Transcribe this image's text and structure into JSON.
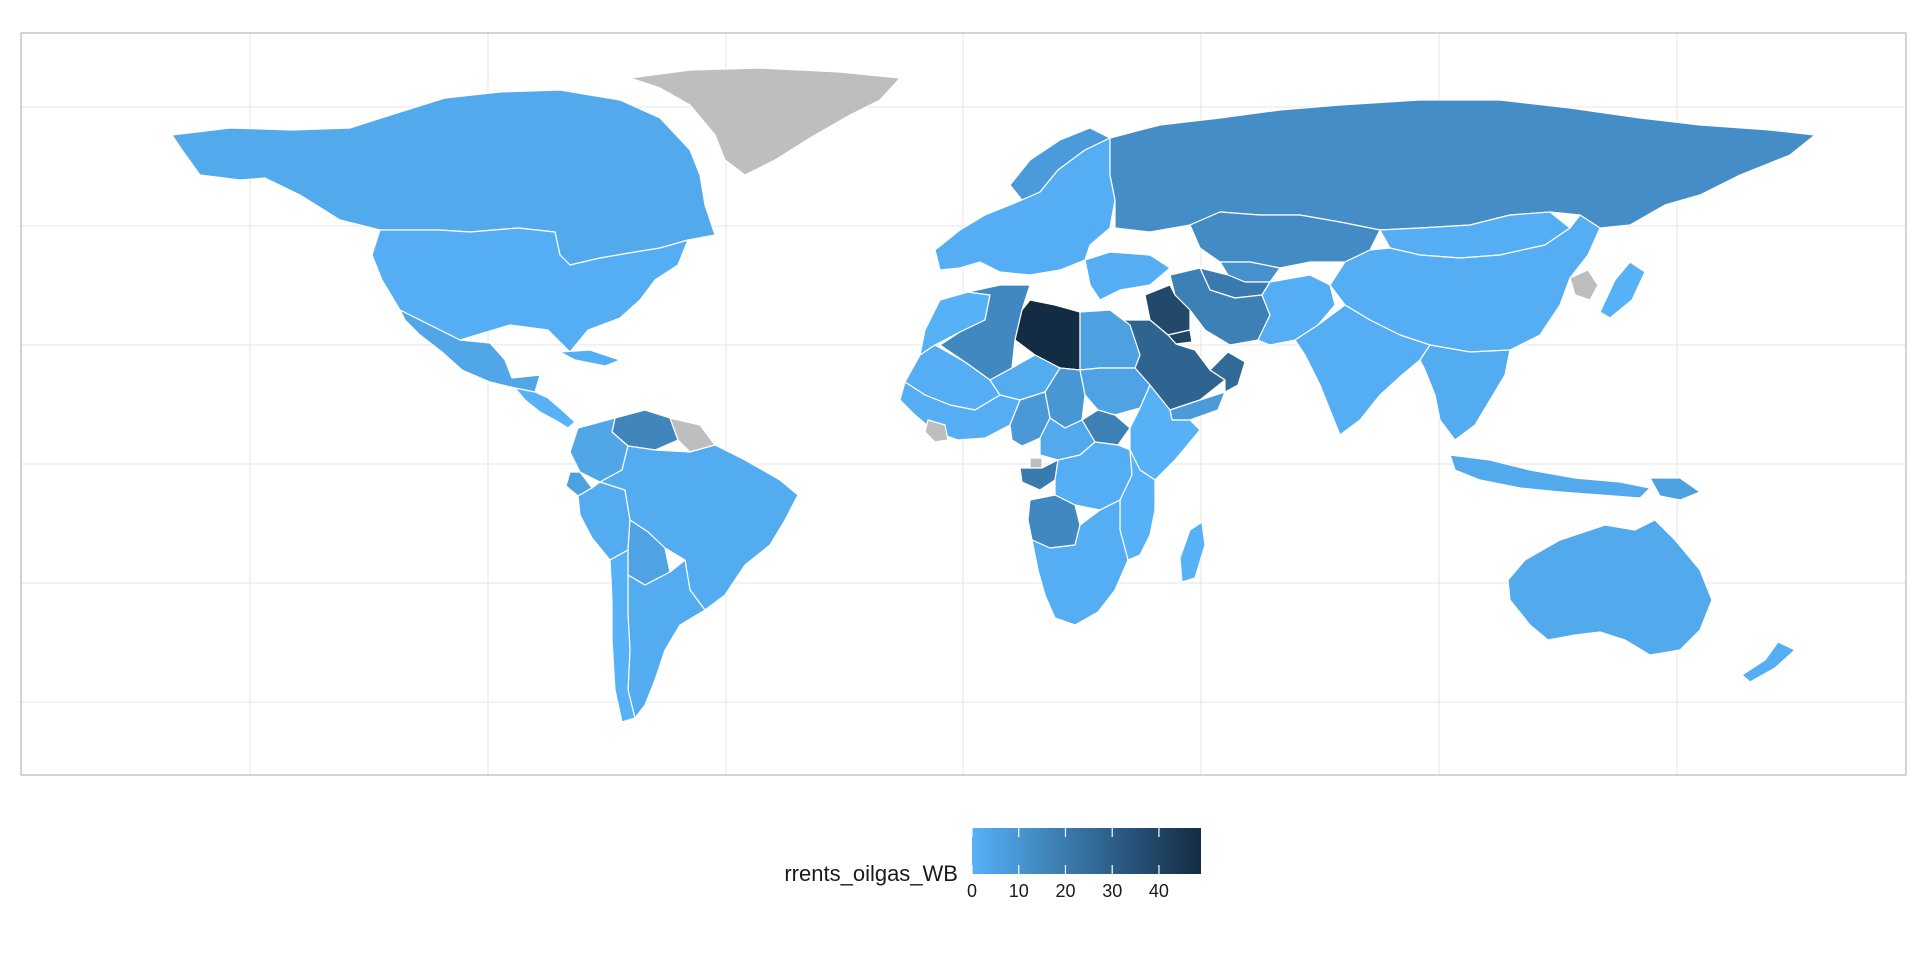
{
  "map": {
    "fill_low": "#56b1f7",
    "fill_high": "#132b43",
    "na_color": "#bebebe",
    "border_color": "#ffffff",
    "value_min": 0,
    "value_max": 49
  },
  "legend": {
    "title": "rrents_oilgas_WB",
    "breaks": [
      0,
      10,
      20,
      30,
      40
    ],
    "break_labels": [
      "0",
      "10",
      "20",
      "30",
      "40"
    ]
  },
  "countries": [
    {
      "name": "Canada",
      "value": 3
    },
    {
      "name": "United States",
      "value": 1
    },
    {
      "name": "Mexico",
      "value": 4
    },
    {
      "name": "Greenland",
      "value": null
    },
    {
      "name": "Central America",
      "value": 0
    },
    {
      "name": "Cuba",
      "value": 1
    },
    {
      "name": "Venezuela",
      "value": 16
    },
    {
      "name": "Colombia",
      "value": 4
    },
    {
      "name": "Ecuador",
      "value": 6
    },
    {
      "name": "Peru",
      "value": 2
    },
    {
      "name": "Brazil",
      "value": 2
    },
    {
      "name": "Bolivia",
      "value": 5
    },
    {
      "name": "Argentina",
      "value": 2
    },
    {
      "name": "Chile",
      "value": 0
    },
    {
      "name": "Guyanas",
      "value": null
    },
    {
      "name": "Europe",
      "value": 1
    },
    {
      "name": "Norway",
      "value": 8
    },
    {
      "name": "Russia",
      "value": 13
    },
    {
      "name": "Kazakhstan",
      "value": 14
    },
    {
      "name": "China",
      "value": 1
    },
    {
      "name": "Japan",
      "value": 0
    },
    {
      "name": "Korean Peninsula",
      "value": null
    },
    {
      "name": "Mongolia",
      "value": 1
    },
    {
      "name": "Turkmenistan",
      "value": 20
    },
    {
      "name": "Uzbekistan",
      "value": 12
    },
    {
      "name": "Iran",
      "value": 18
    },
    {
      "name": "Afghanistan & Pakistan",
      "value": 1
    },
    {
      "name": "India",
      "value": 1
    },
    {
      "name": "Southeast Asia",
      "value": 2
    },
    {
      "name": "Indonesia",
      "value": 3
    },
    {
      "name": "Papua New Guinea",
      "value": 6
    },
    {
      "name": "Australia",
      "value": 3
    },
    {
      "name": "New Zealand",
      "value": 1
    },
    {
      "name": "Turkey & Levant",
      "value": 1
    },
    {
      "name": "Iraq",
      "value": 38
    },
    {
      "name": "Kuwait",
      "value": 40
    },
    {
      "name": "Saudi Arabia",
      "value": 28
    },
    {
      "name": "Oman",
      "value": 26
    },
    {
      "name": "Yemen",
      "value": 8
    },
    {
      "name": "Morocco & W. Sahara",
      "value": 0
    },
    {
      "name": "Algeria",
      "value": 15
    },
    {
      "name": "Libya",
      "value": 49
    },
    {
      "name": "Egypt",
      "value": 6
    },
    {
      "name": "Mauritania & Mali",
      "value": 1
    },
    {
      "name": "Niger",
      "value": 2
    },
    {
      "name": "Chad",
      "value": 10
    },
    {
      "name": "Sudan",
      "value": 5
    },
    {
      "name": "South Sudan",
      "value": 18
    },
    {
      "name": "Ethiopia & Horn",
      "value": 0
    },
    {
      "name": "West Africa",
      "value": 1
    },
    {
      "name": "Sierra Leone & Liberia",
      "value": null
    },
    {
      "name": "Nigeria",
      "value": 9
    },
    {
      "name": "Cameroon & CAR",
      "value": 3
    },
    {
      "name": "Gabon & Congo",
      "value": 20
    },
    {
      "name": "Equatorial Guinea",
      "value": null
    },
    {
      "name": "DR Congo",
      "value": 1
    },
    {
      "name": "Angola",
      "value": 15
    },
    {
      "name": "East Africa",
      "value": 0
    },
    {
      "name": "Southern Africa",
      "value": 1
    },
    {
      "name": "Madagascar",
      "value": 0
    }
  ]
}
